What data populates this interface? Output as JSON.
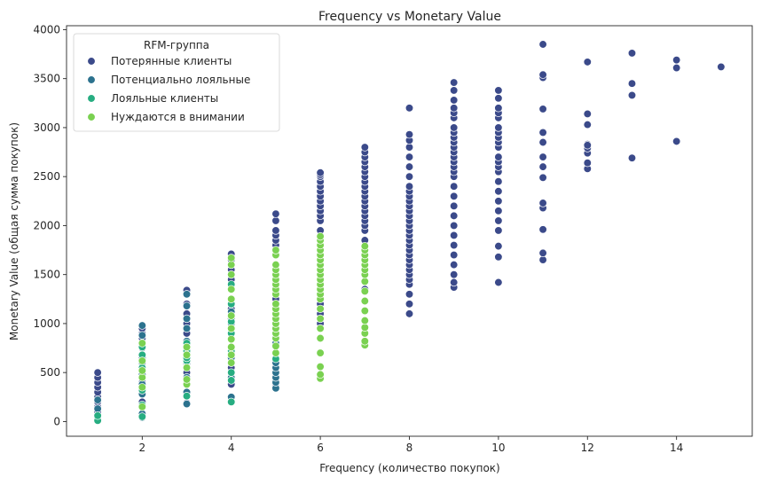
{
  "chart_data": {
    "type": "scatter",
    "title": "Frequency vs Monetary Value",
    "xlabel": "Frequency (количество покупок)",
    "ylabel": "Monetary Value (общая сумма покупок)",
    "xlim": [
      0.3,
      15.7
    ],
    "ylim": [
      -150,
      4040
    ],
    "xticks": [
      2,
      4,
      6,
      8,
      10,
      12,
      14
    ],
    "yticks": [
      0,
      500,
      1000,
      1500,
      2000,
      2500,
      3000,
      3500,
      4000
    ],
    "grid": false,
    "legend": {
      "title": "RFM-группа",
      "placement": "top-left"
    },
    "series": [
      {
        "name": "Потерянные клиенты",
        "color": "#3b4a8a",
        "x": [
          1,
          1,
          1,
          1,
          1,
          1,
          1,
          1,
          1,
          1,
          1,
          2,
          2,
          2,
          2,
          2,
          2,
          2,
          2,
          2,
          2,
          3,
          3,
          3,
          3,
          3,
          3,
          3,
          3,
          3,
          3,
          3,
          3,
          4,
          4,
          4,
          4,
          4,
          4,
          4,
          4,
          4,
          4,
          4,
          4,
          4,
          5,
          5,
          5,
          5,
          5,
          5,
          5,
          5,
          5,
          5,
          5,
          5,
          5,
          5,
          5,
          5,
          5,
          6,
          6,
          6,
          6,
          6,
          6,
          6,
          6,
          6,
          6,
          6,
          6,
          6,
          6,
          6,
          6,
          6,
          6,
          6,
          6,
          6,
          6,
          6,
          6,
          6,
          7,
          7,
          7,
          7,
          7,
          7,
          7,
          7,
          7,
          7,
          7,
          7,
          7,
          7,
          7,
          7,
          7,
          7,
          7,
          7,
          7,
          7,
          7,
          8,
          8,
          8,
          8,
          8,
          8,
          8,
          8,
          8,
          8,
          8,
          8,
          8,
          8,
          8,
          8,
          8,
          8,
          8,
          8,
          8,
          8,
          8,
          8,
          8,
          8,
          8,
          8,
          8,
          8,
          8,
          9,
          9,
          9,
          9,
          9,
          9,
          9,
          9,
          9,
          9,
          9,
          9,
          9,
          9,
          9,
          9,
          9,
          9,
          9,
          9,
          9,
          9,
          9,
          9,
          9,
          9,
          9,
          9,
          9,
          10,
          10,
          10,
          10,
          10,
          10,
          10,
          10,
          10,
          10,
          10,
          10,
          10,
          10,
          10,
          10,
          10,
          10,
          10,
          10,
          10,
          10,
          10,
          11,
          11,
          11,
          11,
          11,
          11,
          11,
          11,
          11,
          11,
          11,
          11,
          11,
          11,
          12,
          12,
          12,
          12,
          12,
          12,
          12,
          12,
          12,
          13,
          13,
          13,
          13,
          14,
          14,
          14,
          15
        ],
        "y": [
          30,
          70,
          100,
          150,
          200,
          250,
          300,
          350,
          400,
          450,
          500,
          200,
          300,
          400,
          500,
          560,
          650,
          750,
          850,
          900,
          950,
          190,
          300,
          420,
          500,
          600,
          700,
          800,
          900,
          1000,
          1100,
          1200,
          1340,
          380,
          550,
          700,
          850,
          950,
          1050,
          1150,
          1250,
          1350,
          1450,
          1550,
          1650,
          1710,
          360,
          500,
          650,
          800,
          950,
          1100,
          1250,
          1400,
          1500,
          1600,
          1700,
          1800,
          1850,
          1900,
          1950,
          2050,
          2120,
          560,
          700,
          850,
          1000,
          1100,
          1200,
          1300,
          1400,
          1500,
          1600,
          1750,
          1850,
          1950,
          2050,
          2100,
          2150,
          2200,
          2250,
          2300,
          2350,
          2400,
          2450,
          2500,
          2520,
          2540,
          1350,
          1500,
          1650,
          1750,
          1850,
          1950,
          2000,
          2050,
          2100,
          2150,
          2200,
          2250,
          2300,
          2350,
          2400,
          2450,
          2500,
          2550,
          2600,
          2650,
          2700,
          2750,
          2800,
          1100,
          1200,
          1300,
          1400,
          1450,
          1500,
          1550,
          1600,
          1650,
          1700,
          1750,
          1800,
          1850,
          1900,
          1950,
          2000,
          2050,
          2100,
          2150,
          2200,
          2250,
          2300,
          2350,
          2400,
          2500,
          2600,
          2700,
          2800,
          2870,
          2930,
          3200,
          1370,
          1420,
          1500,
          1600,
          1700,
          1800,
          1900,
          2000,
          2100,
          2200,
          2300,
          2400,
          2500,
          2550,
          2600,
          2650,
          2700,
          2750,
          2800,
          2850,
          2900,
          2950,
          3000,
          3100,
          3150,
          3200,
          3280,
          3380,
          3460,
          1420,
          1680,
          1790,
          1950,
          2050,
          2150,
          2250,
          2350,
          2450,
          2550,
          2600,
          2650,
          2700,
          2800,
          2850,
          2900,
          2950,
          3000,
          3100,
          3150,
          3200,
          3300,
          3380,
          1650,
          1720,
          1960,
          2180,
          2230,
          2490,
          2600,
          2700,
          2850,
          2950,
          3190,
          3510,
          3540,
          3850,
          2580,
          2640,
          2740,
          2790,
          2830,
          3030,
          3140,
          3670,
          2820,
          2690,
          3330,
          3450,
          3760,
          2860,
          3610,
          3690,
          3620
        ]
      },
      {
        "name": "Потенциально лояльные",
        "color": "#2c728e",
        "x": [
          1,
          1,
          1,
          2,
          2,
          2,
          2,
          2,
          2,
          2,
          2,
          2,
          3,
          3,
          3,
          3,
          3,
          3,
          3,
          3,
          3,
          3,
          4,
          4,
          4,
          4,
          4,
          4,
          4,
          4,
          4,
          5,
          5,
          5,
          5,
          5,
          5,
          5,
          5,
          5,
          5,
          5,
          5,
          5,
          5,
          5
        ],
        "y": [
          30,
          130,
          220,
          40,
          80,
          150,
          280,
          380,
          480,
          600,
          880,
          980,
          180,
          300,
          450,
          580,
          700,
          820,
          950,
          1050,
          1180,
          1300,
          250,
          450,
          600,
          650,
          750,
          850,
          1000,
          1120,
          1250,
          340,
          400,
          450,
          500,
          550,
          600,
          650,
          700,
          800,
          900,
          1000,
          1050,
          1150,
          1300,
          1400
        ]
      },
      {
        "name": "Лояльные клиенты",
        "color": "#27ad81",
        "x": [
          1,
          1,
          2,
          2,
          2,
          2,
          2,
          2,
          3,
          3,
          3,
          3,
          3,
          3,
          3,
          4,
          4,
          4,
          4,
          4,
          4,
          4,
          4,
          5,
          5,
          5,
          5,
          5
        ],
        "y": [
          10,
          60,
          50,
          170,
          320,
          550,
          680,
          760,
          260,
          420,
          560,
          620,
          650,
          720,
          800,
          200,
          420,
          500,
          720,
          900,
          1020,
          1200,
          1400,
          640,
          860,
          1100,
          1160,
          1330
        ]
      },
      {
        "name": "Нуждаются в внимании",
        "color": "#7ad151",
        "x": [
          2,
          2,
          2,
          2,
          2,
          2,
          3,
          3,
          3,
          3,
          3,
          4,
          4,
          4,
          4,
          4,
          4,
          4,
          4,
          4,
          4,
          4,
          5,
          5,
          5,
          5,
          5,
          5,
          5,
          5,
          5,
          5,
          5,
          5,
          5,
          5,
          5,
          5,
          5,
          5,
          5,
          6,
          6,
          6,
          6,
          6,
          6,
          6,
          6,
          6,
          6,
          6,
          6,
          6,
          6,
          6,
          6,
          6,
          6,
          6,
          6,
          6,
          6,
          7,
          7,
          7,
          7,
          7,
          7,
          7,
          7,
          7,
          7,
          7,
          7,
          7,
          7,
          7,
          7
        ],
        "y": [
          150,
          350,
          450,
          520,
          620,
          800,
          380,
          430,
          550,
          680,
          760,
          600,
          680,
          760,
          840,
          950,
          1080,
          1250,
          1350,
          1500,
          1600,
          1670,
          700,
          770,
          850,
          900,
          950,
          1000,
          1050,
          1100,
          1150,
          1200,
          1300,
          1350,
          1400,
          1450,
          1500,
          1550,
          1600,
          1700,
          1750,
          440,
          480,
          560,
          700,
          850,
          950,
          1050,
          1150,
          1250,
          1300,
          1350,
          1400,
          1450,
          1500,
          1550,
          1600,
          1650,
          1700,
          1750,
          1800,
          1850,
          1890,
          780,
          820,
          900,
          960,
          1030,
          1130,
          1230,
          1330,
          1430,
          1500,
          1550,
          1600,
          1650,
          1700,
          1750,
          1790
        ]
      }
    ]
  }
}
